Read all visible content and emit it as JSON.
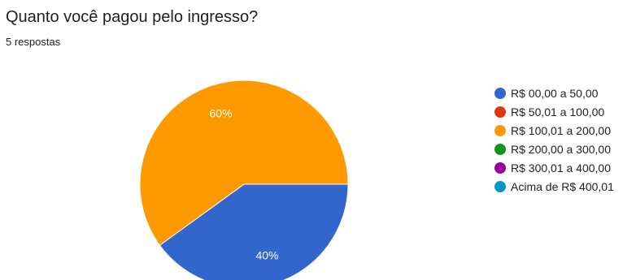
{
  "question": {
    "title": "Quanto você pagou pelo ingresso?",
    "responses": "5 respostas"
  },
  "chart_data": {
    "type": "pie",
    "categories": [
      "R$ 00,00 a 50,00",
      "R$ 50,01 a 100,00",
      "R$ 100,01 a 200,00",
      "R$ 200,00 a 300,00",
      "R$ 300,01 a 400,00",
      "Acima de R$ 400,01"
    ],
    "values": [
      40,
      0,
      60,
      0,
      0,
      0
    ],
    "slice_labels": [
      "40%",
      "",
      "60%",
      "",
      "",
      ""
    ],
    "colors": [
      "#3366cc",
      "#dc3912",
      "#ff9900",
      "#109618",
      "#990099",
      "#0099c6"
    ],
    "legend_position": "right"
  }
}
